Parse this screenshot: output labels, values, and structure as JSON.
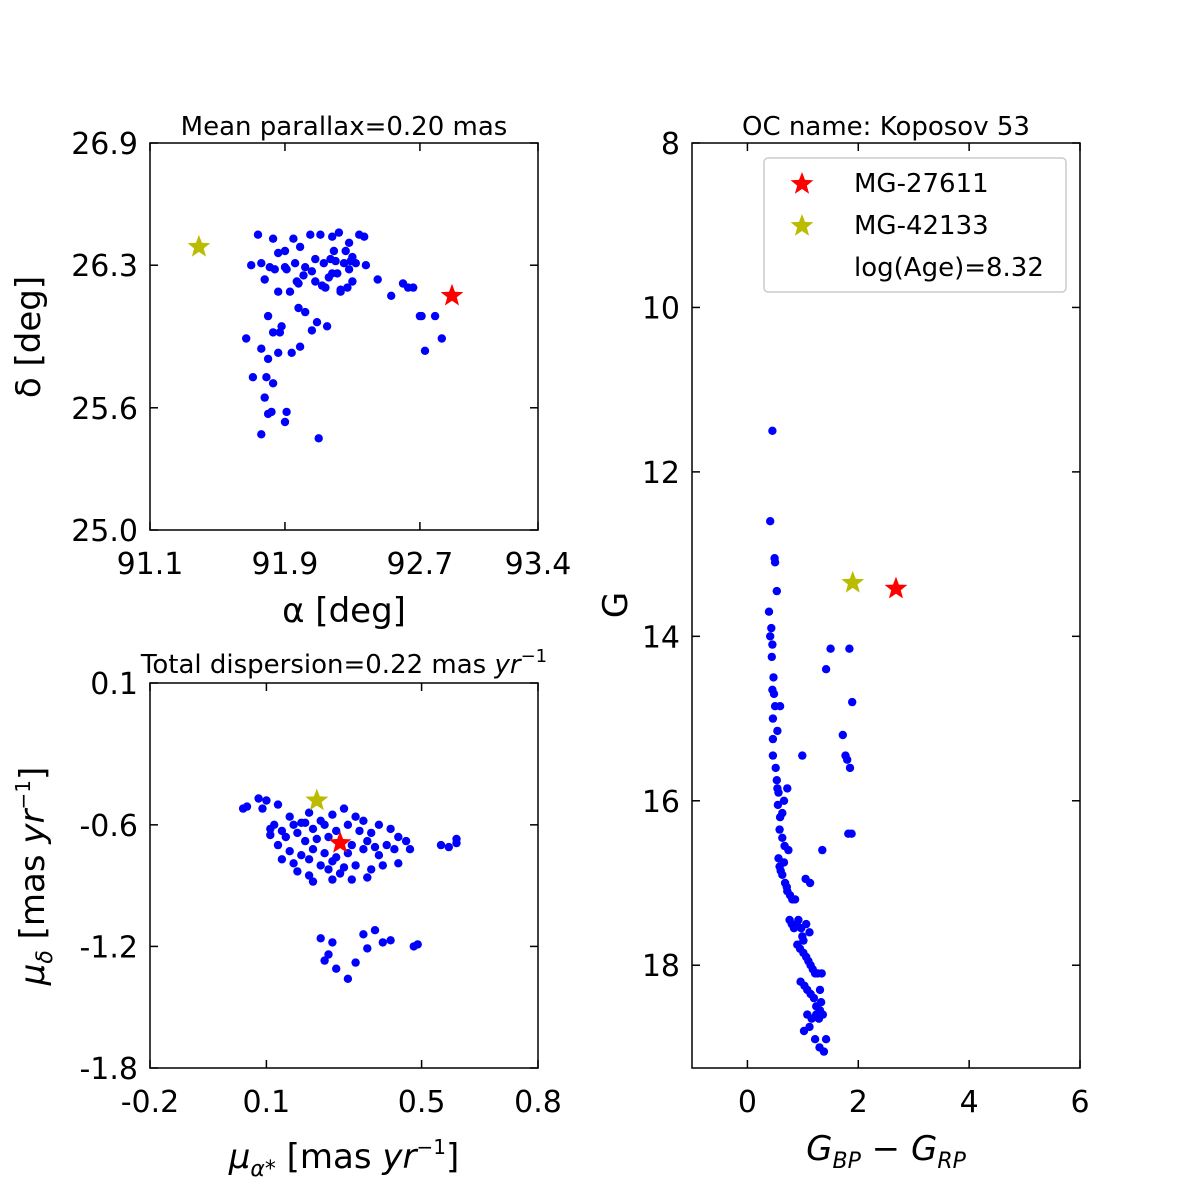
{
  "chart_data": [
    {
      "id": "radec",
      "type": "scatter",
      "title": "Mean parallax=0.20 mas",
      "xlabel": "α [deg]",
      "ylabel": "δ [deg]",
      "xlim": [
        91.1,
        93.4
      ],
      "ylim": [
        25.0,
        26.9
      ],
      "xticks": [
        91.1,
        91.9,
        92.7,
        93.4
      ],
      "xtick_labels": [
        "91.1",
        "91.9",
        "92.7",
        "93.4"
      ],
      "yticks": [
        25.0,
        25.6,
        26.3,
        26.9
      ],
      "ytick_labels": [
        "25.0",
        "25.6",
        "26.3",
        "26.9"
      ],
      "series": [
        {
          "name": "members",
          "marker": "dot",
          "color": "#0000ff",
          "x": [
            91.74,
            91.83,
            91.86,
            91.9,
            91.95,
            91.99,
            92.05,
            92.11,
            92.18,
            92.22,
            92.26,
            92.3,
            92.34,
            91.7,
            91.76,
            91.81,
            91.9,
            91.96,
            92.02,
            92.08,
            92.13,
            92.17,
            92.2,
            92.25,
            92.29,
            92.32,
            92.28,
            92.21,
            92.16,
            92.12,
            92.08,
            92.01,
            91.93,
            91.86,
            91.78,
            91.84,
            91.91,
            91.98,
            92.06,
            92.14,
            92.23,
            92.3,
            92.38,
            92.45,
            92.53,
            92.6,
            92.66,
            92.7,
            92.73,
            92.83,
            92.79,
            91.98,
            92.02,
            92.09,
            92.15,
            92.23,
            92.18,
            92.27,
            91.88,
            91.8,
            91.76,
            91.83,
            91.87,
            91.94,
            91.99,
            92.06,
            91.97,
            91.67,
            91.83,
            91.82,
            91.8,
            91.91,
            91.71,
            91.78,
            91.79,
            91.8,
            91.86,
            91.9,
            91.76,
            92.1,
            92.71,
            92.63,
            92.19,
            92.28,
            92.37
          ],
          "y": [
            26.45,
            26.43,
            26.36,
            26.37,
            26.43,
            26.39,
            26.45,
            26.45,
            26.44,
            26.46,
            26.37,
            26.34,
            26.45,
            26.3,
            26.31,
            26.29,
            26.29,
            26.31,
            26.29,
            26.33,
            26.31,
            26.33,
            26.32,
            26.31,
            26.32,
            26.31,
            26.28,
            26.26,
            26.24,
            26.2,
            26.22,
            26.25,
            26.17,
            26.17,
            26.23,
            26.28,
            26.28,
            26.21,
            26.27,
            26.19,
            26.18,
            26.22,
            26.3,
            26.23,
            26.15,
            26.21,
            26.19,
            26.05,
            25.88,
            25.94,
            26.05,
            26.09,
            26.07,
            26.02,
            26.0,
            26.17,
            26.26,
            26.19,
            26.0,
            26.05,
            25.89,
            25.97,
            25.97,
            25.87,
            25.9,
            25.98,
            26.22,
            25.94,
            25.72,
            25.58,
            25.57,
            25.58,
            25.75,
            25.65,
            25.75,
            25.84,
            25.87,
            25.53,
            25.47,
            25.45,
            26.05,
            26.19,
            26.37,
            26.41,
            26.44
          ]
        },
        {
          "name": "MG-27611",
          "marker": "star",
          "color": "#ff0000",
          "x": [
            92.89
          ],
          "y": [
            26.15
          ]
        },
        {
          "name": "MG-42133",
          "marker": "star",
          "color": "#bbbb00",
          "x": [
            91.39
          ],
          "y": [
            26.39
          ]
        }
      ]
    },
    {
      "id": "pm",
      "type": "scatter",
      "title": "Total dispersion=0.22 mas yr⁻¹",
      "xlabel": "μα* [mas yr⁻¹]",
      "ylabel": "μδ [mas yr⁻¹]",
      "xlim": [
        -0.2,
        0.8
      ],
      "ylim": [
        -1.8,
        0.1
      ],
      "xticks": [
        -0.2,
        0.1,
        0.5,
        0.8
      ],
      "xtick_labels": [
        "-0.2",
        "0.1",
        "0.5",
        "0.8"
      ],
      "yticks": [
        -1.8,
        -1.2,
        -0.6,
        0.1
      ],
      "ytick_labels": [
        "-1.8",
        "-1.2",
        "-0.6",
        "0.1"
      ],
      "series": [
        {
          "name": "members",
          "marker": "dot",
          "color": "#0000ff",
          "x": [
            0.05,
            0.09,
            0.1,
            0.13,
            0.16,
            0.19,
            0.21,
            0.24,
            0.27,
            0.3,
            0.33,
            0.35,
            0.12,
            0.14,
            0.17,
            0.2,
            0.22,
            0.25,
            0.28,
            0.31,
            0.34,
            0.37,
            0.39,
            0.42,
            0.44,
            0.46,
            0.11,
            0.15,
            0.18,
            0.2,
            0.23,
            0.26,
            0.29,
            0.32,
            0.36,
            0.38,
            0.41,
            0.43,
            0.47,
            0.13,
            0.16,
            0.19,
            0.22,
            0.25,
            0.28,
            0.31,
            0.35,
            0.39,
            0.14,
            0.17,
            0.21,
            0.24,
            0.27,
            0.3,
            0.33,
            0.37,
            0.4,
            0.18,
            0.21,
            0.26,
            0.29,
            0.36,
            0.44,
            0.22,
            0.27,
            0.32,
            0.55,
            0.57,
            0.59,
            0.59,
            0.24,
            0.27,
            0.35,
            0.38,
            0.4,
            0.42,
            0.48,
            0.49,
            0.26,
            0.33,
            0.28,
            0.36,
            0.25,
            0.31,
            0.11,
            0.04,
            0.08
          ],
          "y": [
            -0.51,
            -0.52,
            -0.48,
            -0.5,
            -0.56,
            -0.59,
            -0.54,
            -0.58,
            -0.55,
            -0.52,
            -0.56,
            -0.58,
            -0.6,
            -0.63,
            -0.6,
            -0.59,
            -0.62,
            -0.6,
            -0.63,
            -0.6,
            -0.63,
            -0.64,
            -0.6,
            -0.62,
            -0.66,
            -0.68,
            -0.65,
            -0.66,
            -0.64,
            -0.68,
            -0.67,
            -0.66,
            -0.69,
            -0.7,
            -0.68,
            -0.71,
            -0.7,
            -0.72,
            -0.72,
            -0.7,
            -0.73,
            -0.75,
            -0.72,
            -0.74,
            -0.76,
            -0.74,
            -0.72,
            -0.75,
            -0.77,
            -0.79,
            -0.77,
            -0.8,
            -0.78,
            -0.81,
            -0.8,
            -0.82,
            -0.8,
            -0.83,
            -0.85,
            -0.82,
            -0.84,
            -0.86,
            -0.79,
            -0.88,
            -0.87,
            -0.87,
            -0.7,
            -0.71,
            -0.69,
            -0.67,
            -1.16,
            -1.18,
            -1.14,
            -1.12,
            -1.18,
            -1.17,
            -1.2,
            -1.19,
            -1.24,
            -1.28,
            -1.31,
            -1.21,
            -1.27,
            -1.36,
            -0.62,
            -0.52,
            -0.47
          ]
        },
        {
          "name": "MG-27611",
          "marker": "star",
          "color": "#ff0000",
          "x": [
            0.29
          ],
          "y": [
            -0.69
          ]
        },
        {
          "name": "MG-42133",
          "marker": "star",
          "color": "#bbbb00",
          "x": [
            0.23
          ],
          "y": [
            -0.48
          ]
        }
      ]
    },
    {
      "id": "cmd",
      "type": "scatter",
      "title": "OC name: Koposov 53",
      "xlabel": "G_BP − G_RP",
      "ylabel": "G",
      "xlim": [
        -1.0,
        6.0
      ],
      "ylim": [
        8.0,
        19.25
      ],
      "y_inverted": true,
      "xticks": [
        0,
        2,
        4,
        6
      ],
      "xtick_labels": [
        "0",
        "2",
        "4",
        "6"
      ],
      "yticks": [
        8,
        10,
        12,
        14,
        16,
        18
      ],
      "ytick_labels": [
        "8",
        "10",
        "12",
        "14",
        "16",
        "18"
      ],
      "series": [
        {
          "name": "members",
          "marker": "dot",
          "color": "#0000ff",
          "x": [
            0.45,
            0.41,
            0.49,
            0.5,
            0.53,
            0.39,
            0.43,
            0.41,
            0.45,
            0.44,
            0.45,
            0.48,
            0.47,
            0.5,
            0.46,
            0.46,
            0.59,
            0.54,
            0.46,
            0.51,
            0.53,
            0.54,
            0.56,
            0.55,
            0.59,
            0.58,
            0.63,
            0.66,
            0.72,
            0.63,
            0.67,
            0.74,
            0.56,
            0.66,
            0.58,
            0.6,
            0.63,
            0.68,
            0.71,
            0.72,
            0.77,
            0.81,
            0.86,
            0.76,
            0.8,
            0.84,
            0.89,
            0.92,
            0.97,
            0.99,
            1.01,
            1.06,
            1.12,
            0.9,
            0.95,
            1.01,
            1.06,
            1.1,
            1.14,
            1.18,
            1.22,
            1.27,
            0.96,
            1.03,
            1.08,
            1.14,
            1.2,
            1.24,
            1.31,
            1.08,
            1.16,
            1.24,
            1.29,
            1.36,
            1.02,
            1.12,
            1.22,
            1.3,
            1.38,
            1.42,
            1.34,
            1.31,
            1.33,
            1.5,
            1.42,
            1.84,
            1.89,
            1.72,
            1.77,
            1.8,
            1.85,
            1.82,
            1.88,
            1.05,
            1.13,
            0.99,
            1.35
          ],
          "y": [
            11.5,
            12.6,
            13.05,
            13.1,
            13.45,
            13.7,
            13.9,
            14.0,
            14.1,
            14.25,
            14.65,
            14.7,
            14.5,
            14.85,
            15.0,
            15.25,
            14.85,
            15.15,
            15.45,
            15.6,
            15.75,
            15.85,
            15.9,
            16.05,
            16.2,
            16.35,
            16.15,
            16.0,
            15.85,
            16.45,
            16.55,
            16.6,
            16.7,
            16.75,
            16.8,
            16.85,
            16.9,
            17.0,
            17.05,
            17.1,
            17.15,
            17.2,
            17.2,
            17.45,
            17.5,
            17.55,
            17.5,
            17.45,
            17.55,
            17.65,
            17.7,
            17.5,
            17.6,
            17.75,
            17.8,
            17.85,
            17.9,
            17.95,
            18.0,
            18.05,
            18.1,
            18.1,
            18.2,
            18.25,
            18.3,
            18.35,
            18.4,
            18.5,
            18.55,
            18.6,
            18.65,
            18.6,
            18.65,
            18.6,
            18.8,
            18.75,
            18.9,
            19.0,
            19.05,
            18.9,
            18.1,
            18.3,
            18.45,
            14.15,
            14.4,
            14.15,
            14.8,
            15.2,
            15.45,
            15.5,
            15.6,
            16.4,
            16.4,
            16.95,
            17.0,
            15.45,
            16.6
          ],
          "y_marker": "dot"
        },
        {
          "name": "MG-27611",
          "marker": "star",
          "color": "#ff0000",
          "x": [
            2.68
          ],
          "y": [
            13.42
          ]
        },
        {
          "name": "MG-42133",
          "marker": "star",
          "color": "#bbbb00",
          "x": [
            1.9
          ],
          "y": [
            13.35
          ]
        }
      ],
      "legend": {
        "placement": "top-right",
        "entries": [
          {
            "label": "MG-27611",
            "marker": "star",
            "color": "#ff0000"
          },
          {
            "label": "MG-42133",
            "marker": "star",
            "color": "#bbbb00"
          },
          {
            "label": "log(Age)=8.32",
            "marker": "none",
            "color": ""
          }
        ]
      }
    }
  ]
}
